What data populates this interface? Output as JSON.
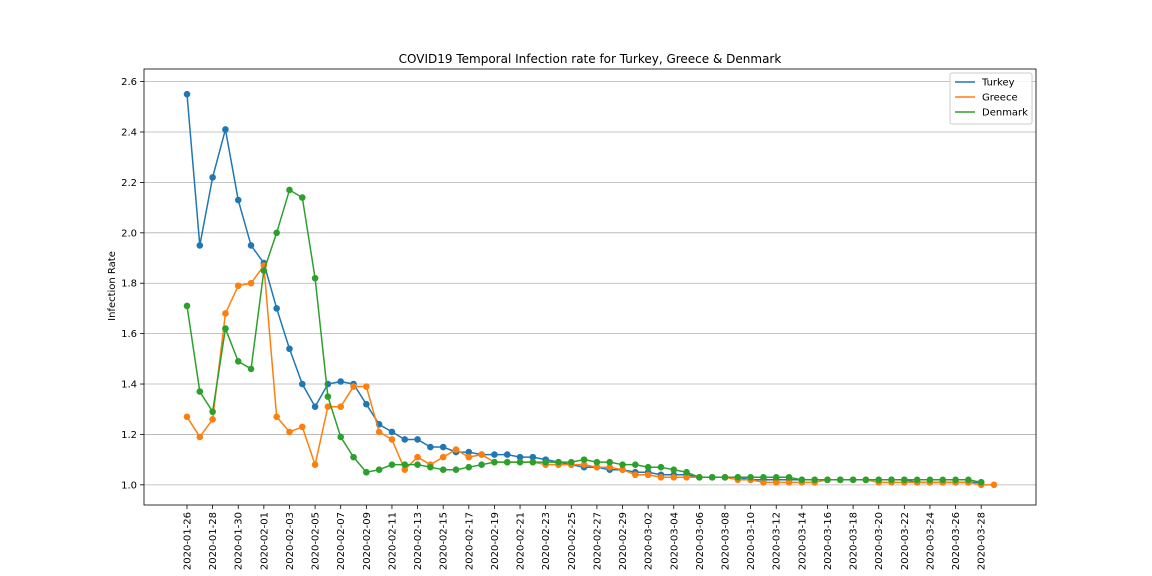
{
  "chart_data": {
    "type": "line",
    "title": "COVID19 Temporal Infection rate for Turkey, Greece & Denmark",
    "xlabel": "",
    "ylabel": "Infection Rate",
    "ylim": [
      0.92,
      2.65
    ],
    "yticks": [
      "1.0",
      "1.2",
      "1.4",
      "1.6",
      "1.8",
      "2.0",
      "2.2",
      "2.4",
      "2.6"
    ],
    "grid": "horizontal",
    "legend_position": "top-right",
    "x": [
      "2020-01-26",
      "2020-01-27",
      "2020-01-28",
      "2020-01-29",
      "2020-01-30",
      "2020-01-31",
      "2020-02-01",
      "2020-02-02",
      "2020-02-03",
      "2020-02-04",
      "2020-02-05",
      "2020-02-06",
      "2020-02-07",
      "2020-02-08",
      "2020-02-09",
      "2020-02-10",
      "2020-02-11",
      "2020-02-12",
      "2020-02-13",
      "2020-02-14",
      "2020-02-15",
      "2020-02-16",
      "2020-02-17",
      "2020-02-18",
      "2020-02-19",
      "2020-02-20",
      "2020-02-21",
      "2020-02-22",
      "2020-02-23",
      "2020-02-24",
      "2020-02-25",
      "2020-02-26",
      "2020-02-27",
      "2020-02-28",
      "2020-02-29",
      "2020-03-01",
      "2020-03-02",
      "2020-03-03",
      "2020-03-04",
      "2020-03-05",
      "2020-03-06",
      "2020-03-07",
      "2020-03-08",
      "2020-03-09",
      "2020-03-10",
      "2020-03-11",
      "2020-03-12",
      "2020-03-13",
      "2020-03-14",
      "2020-03-15",
      "2020-03-16",
      "2020-03-17",
      "2020-03-18",
      "2020-03-19",
      "2020-03-20",
      "2020-03-21",
      "2020-03-22",
      "2020-03-23",
      "2020-03-24",
      "2020-03-25",
      "2020-03-26",
      "2020-03-27",
      "2020-03-28",
      "2020-03-29"
    ],
    "xticklabels": [
      "2020-01-26",
      "2020-01-28",
      "2020-01-30",
      "2020-02-01",
      "2020-02-03",
      "2020-02-05",
      "2020-02-07",
      "2020-02-09",
      "2020-02-11",
      "2020-02-13",
      "2020-02-15",
      "2020-02-17",
      "2020-02-19",
      "2020-02-21",
      "2020-02-23",
      "2020-02-25",
      "2020-02-27",
      "2020-02-29",
      "2020-03-02",
      "2020-03-04",
      "2020-03-06",
      "2020-03-08",
      "2020-03-10",
      "2020-03-12",
      "2020-03-14",
      "2020-03-16",
      "2020-03-18",
      "2020-03-20",
      "2020-03-22",
      "2020-03-24",
      "2020-03-26",
      "2020-03-28"
    ],
    "series": [
      {
        "name": "Turkey",
        "color": "#1f77b4",
        "values": [
          2.55,
          1.95,
          2.22,
          2.41,
          2.13,
          1.95,
          1.88,
          1.7,
          1.54,
          1.4,
          1.31,
          1.4,
          1.41,
          1.4,
          1.32,
          1.24,
          1.21,
          1.18,
          1.18,
          1.15,
          1.15,
          1.13,
          1.13,
          1.12,
          1.12,
          1.12,
          1.11,
          1.11,
          1.1,
          1.09,
          1.08,
          1.07,
          1.07,
          1.06,
          1.06,
          1.05,
          1.05,
          1.04,
          1.04,
          1.04,
          1.03,
          1.03,
          1.03,
          1.03,
          1.02,
          1.02,
          1.02,
          1.02,
          1.02,
          1.02,
          1.02,
          1.02,
          1.02,
          1.02,
          1.02,
          1.02,
          1.02,
          1.01,
          1.01,
          1.01,
          1.01,
          1.01,
          1.01,
          null
        ]
      },
      {
        "name": "Greece",
        "color": "#ff7f0e",
        "values": [
          1.27,
          1.19,
          1.26,
          1.68,
          1.79,
          1.8,
          1.87,
          1.27,
          1.21,
          1.23,
          1.08,
          1.31,
          1.31,
          1.39,
          1.39,
          1.21,
          1.18,
          1.06,
          1.11,
          1.08,
          1.11,
          1.14,
          1.11,
          1.12,
          1.09,
          1.09,
          1.09,
          1.09,
          1.08,
          1.08,
          1.08,
          1.08,
          1.07,
          1.07,
          1.06,
          1.04,
          1.04,
          1.03,
          1.03,
          1.03,
          1.03,
          1.03,
          1.03,
          1.02,
          1.02,
          1.01,
          1.01,
          1.01,
          1.01,
          1.01,
          1.02,
          1.02,
          1.02,
          1.02,
          1.01,
          1.01,
          1.01,
          1.01,
          1.01,
          1.01,
          1.01,
          1.01,
          1.0,
          1.0
        ]
      },
      {
        "name": "Denmark",
        "color": "#2ca02c",
        "values": [
          1.71,
          1.37,
          1.29,
          1.62,
          1.49,
          1.46,
          1.85,
          2.0,
          2.17,
          2.14,
          1.82,
          1.35,
          1.19,
          1.11,
          1.05,
          1.06,
          1.08,
          1.08,
          1.08,
          1.07,
          1.06,
          1.06,
          1.07,
          1.08,
          1.09,
          1.09,
          1.09,
          1.09,
          1.09,
          1.09,
          1.09,
          1.1,
          1.09,
          1.09,
          1.08,
          1.08,
          1.07,
          1.07,
          1.06,
          1.05,
          1.03,
          1.03,
          1.03,
          1.03,
          1.03,
          1.03,
          1.03,
          1.03,
          1.02,
          1.02,
          1.02,
          1.02,
          1.02,
          1.02,
          1.02,
          1.02,
          1.02,
          1.02,
          1.02,
          1.02,
          1.02,
          1.02,
          1.01,
          null
        ]
      }
    ]
  }
}
